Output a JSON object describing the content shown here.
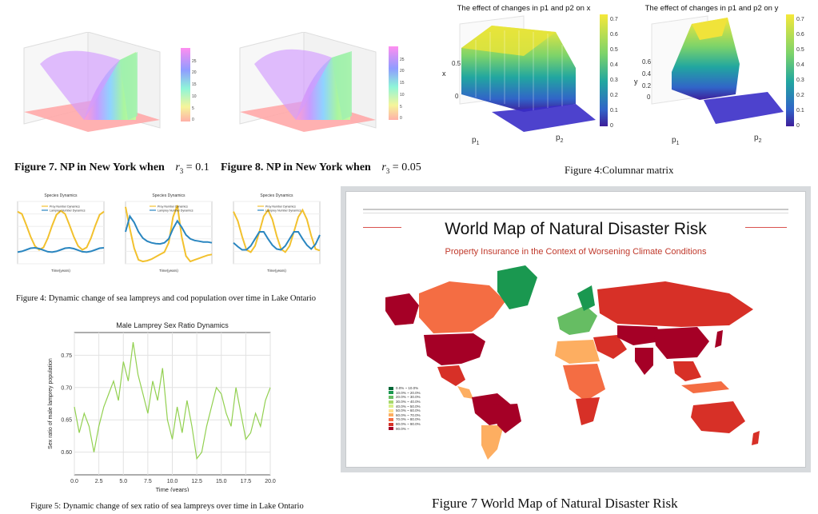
{
  "captions": {
    "fig7_np": "Figure 7. NP in New York when",
    "fig7_eq": "r",
    "fig7_sub": "3",
    "fig7_val": " = 0.1",
    "fig8_np": "Figure 8. NP in New York when",
    "fig8_eq": "r",
    "fig8_sub": "3",
    "fig8_val": " = 0.05",
    "fig4_columnar": "Figure 4:Columnar matrix",
    "fig4_dynamic": "Figure 4: Dynamic change of sea lampreys and cod population over time in Lake Ontario",
    "fig5": "Figure 5: Dynamic change of sex ratio of sea lampreys over time in Lake Ontario",
    "fig7_map": "Figure 7 World Map of Natural Disaster Risk"
  },
  "surface_colorbar": {
    "ticks": [
      "25",
      "20",
      "15",
      "10",
      "5",
      "0"
    ]
  },
  "bar3d": {
    "x_title": "The effect of changes in p1 and p2 on x",
    "y_title": "The effect of changes in p1 and p2 on y",
    "x_axis": "x",
    "y_axis": "y",
    "p1": "p",
    "p1_sub": "1",
    "p2": "p",
    "p2_sub": "2",
    "x_zticks": [
      "0.5",
      "0"
    ],
    "y_zticks": [
      "0.6",
      "0.4",
      "0.2",
      "0"
    ],
    "colorbar_ticks": [
      "0.7",
      "0.6",
      "0.5",
      "0.4",
      "0.3",
      "0.2",
      "0.1",
      "0"
    ]
  },
  "species": {
    "title": "Species Dynamics",
    "legend_prey": "Prey Number Dynamics",
    "legend_lamprey": "Lamprey Number Dynamics",
    "xlabel": "Time(years)",
    "colors": {
      "prey": "#f2c12e",
      "lamprey": "#2a86c0"
    }
  },
  "chart_data": [
    {
      "type": "line",
      "title": "Male Lamprey Sex Ratio Dynamics",
      "xlabel": "Time (years)",
      "ylabel": "Sex ratio of male lamprey population",
      "xlim": [
        0,
        20
      ],
      "ylim": [
        0.565,
        0.785
      ],
      "xticks": [
        "0.0",
        "2.5",
        "5.0",
        "7.5",
        "10.0",
        "12.5",
        "15.0",
        "17.5",
        "20.0"
      ],
      "yticks": [
        "0.60",
        "0.65",
        "0.70",
        "0.75"
      ],
      "grid": true,
      "color": "#92d050",
      "x": [
        0,
        0.5,
        1,
        1.5,
        2,
        2.5,
        3,
        3.5,
        4,
        4.5,
        5,
        5.5,
        6,
        6.5,
        7,
        7.5,
        8,
        8.5,
        9,
        9.5,
        10,
        10.5,
        11,
        11.5,
        12,
        12.5,
        13,
        13.5,
        14,
        14.5,
        15,
        15.5,
        16,
        16.5,
        17,
        17.5,
        18,
        18.5,
        19,
        19.5,
        20
      ],
      "y": [
        0.67,
        0.63,
        0.66,
        0.64,
        0.6,
        0.64,
        0.67,
        0.69,
        0.71,
        0.68,
        0.74,
        0.71,
        0.77,
        0.72,
        0.69,
        0.66,
        0.71,
        0.68,
        0.73,
        0.65,
        0.62,
        0.67,
        0.63,
        0.68,
        0.64,
        0.59,
        0.6,
        0.64,
        0.67,
        0.7,
        0.69,
        0.66,
        0.64,
        0.7,
        0.66,
        0.62,
        0.63,
        0.66,
        0.64,
        0.68,
        0.7
      ]
    },
    {
      "type": "line",
      "title": "Species Dynamics",
      "xlabel": "Time(years)",
      "series": [
        {
          "name": "Prey Number Dynamics",
          "color": "#f2c12e",
          "values": [
            820,
            790,
            650,
            500,
            380,
            330,
            360,
            480,
            640,
            780,
            830,
            790,
            650,
            500,
            380,
            330,
            360,
            480,
            640,
            780,
            820
          ]
        },
        {
          "name": "Lamprey Number Dynamics",
          "color": "#2a86c0",
          "values": [
            300,
            310,
            330,
            350,
            355,
            345,
            325,
            305,
            300,
            310,
            330,
            350,
            355,
            345,
            325,
            305,
            300,
            310,
            330,
            350,
            355
          ]
        }
      ]
    },
    {
      "type": "line",
      "title": "Species Dynamics",
      "xlabel": "Time(years)",
      "series": [
        {
          "name": "Prey Number Dynamics",
          "color": "#f2c12e",
          "values": [
            880,
            600,
            350,
            200,
            180,
            190,
            210,
            240,
            270,
            300,
            420,
            750,
            900,
            500,
            250,
            180,
            200,
            220,
            240,
            260,
            270
          ]
        },
        {
          "name": "Lamprey Number Dynamics",
          "color": "#2a86c0",
          "values": [
            560,
            760,
            680,
            560,
            480,
            440,
            420,
            410,
            405,
            420,
            470,
            600,
            700,
            620,
            520,
            470,
            450,
            440,
            430,
            430,
            420
          ]
        }
      ]
    },
    {
      "type": "line",
      "title": "Species Dynamics",
      "xlabel": "Time(years)",
      "series": [
        {
          "name": "Prey Number Dynamics",
          "color": "#f2c12e",
          "values": [
            820,
            700,
            500,
            330,
            300,
            380,
            560,
            760,
            840,
            720,
            510,
            340,
            300,
            380,
            560,
            750,
            840,
            720,
            510,
            340,
            320
          ]
        },
        {
          "name": "Lamprey Number Dynamics",
          "color": "#2a86c0",
          "values": [
            420,
            370,
            330,
            330,
            380,
            470,
            560,
            560,
            470,
            390,
            340,
            330,
            380,
            470,
            560,
            560,
            470,
            390,
            340,
            400,
            520
          ]
        }
      ]
    }
  ],
  "map": {
    "title": "World Map of Natural Disaster Risk",
    "subtitle": "Property Insurance in the Context of Worsening Climate Conditions",
    "legend": [
      {
        "label": "0.0% ~ 10.0%",
        "color": "#006837"
      },
      {
        "label": "10.0% ~ 20.0%",
        "color": "#1a9850"
      },
      {
        "label": "20.0% ~ 30.0%",
        "color": "#66bd63"
      },
      {
        "label": "30.0% ~ 40.0%",
        "color": "#a6d96a"
      },
      {
        "label": "40.0% ~ 50.0%",
        "color": "#d9ef8b"
      },
      {
        "label": "50.0% ~ 60.0%",
        "color": "#fee08b"
      },
      {
        "label": "60.0% ~ 70.0%",
        "color": "#fdae61"
      },
      {
        "label": "70.0% ~ 80.0%",
        "color": "#f46d43"
      },
      {
        "label": "80.0% ~ 90.0%",
        "color": "#d73027"
      },
      {
        "label": "90.0% ~",
        "color": "#a50026"
      }
    ]
  }
}
